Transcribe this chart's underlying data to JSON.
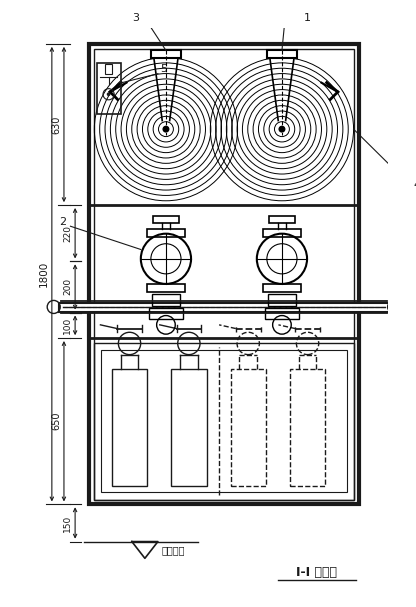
{
  "bg_color": "#ffffff",
  "line_color": "#1a1a1a",
  "figsize": [
    4.16,
    6.07
  ],
  "dpi": 100,
  "labels": {
    "floor_text": "室内地面",
    "title_text": "I-I 剖面图"
  }
}
